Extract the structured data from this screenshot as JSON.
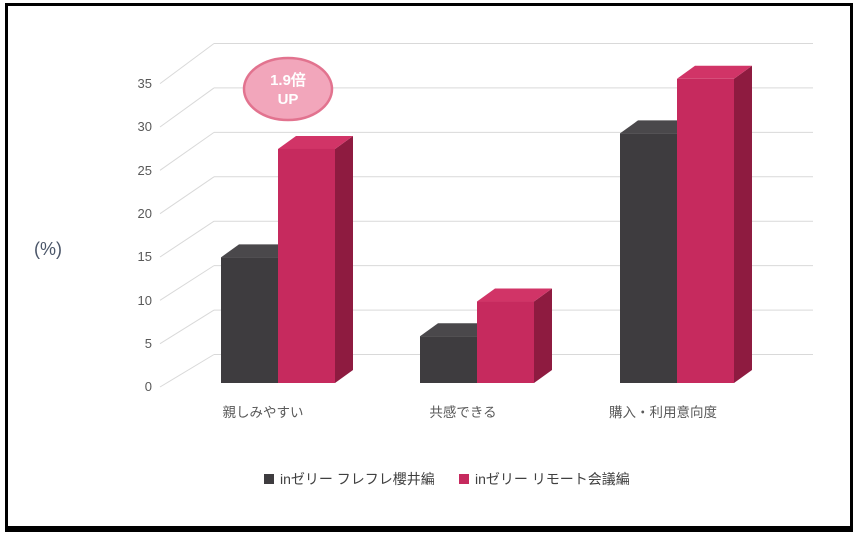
{
  "chart_data": {
    "type": "bar",
    "subtype": "3d-column",
    "title": "",
    "unit_label": "(%)",
    "xlabel": "",
    "ylabel": "(%)",
    "categories": [
      "親しみやすい",
      "共感できる",
      "購入・利用意向度"
    ],
    "series": [
      {
        "name": "inゼリー フレフレ櫻井編",
        "values": [
          14.5,
          5.4,
          28.8
        ],
        "color": "#3e3c3f",
        "color_top": "#4a484b",
        "color_side": "#29272a"
      },
      {
        "name": "inゼリー リモート会議編",
        "values": [
          27.0,
          9.4,
          35.1
        ],
        "color": "#c62a5e",
        "color_top": "#d13467",
        "color_side": "#8e1b40"
      }
    ],
    "yticks": [
      0,
      5,
      10,
      15,
      20,
      25,
      30,
      35
    ],
    "ylim": [
      0,
      37.5
    ],
    "grid": true,
    "grid_color": "#d9d9d9",
    "legend_position": "bottom",
    "annotation": {
      "lines": [
        "1.9倍",
        "UP"
      ],
      "fill": "#f2a6bb",
      "border": "#e2738f",
      "text_color": "#ffffff"
    }
  }
}
